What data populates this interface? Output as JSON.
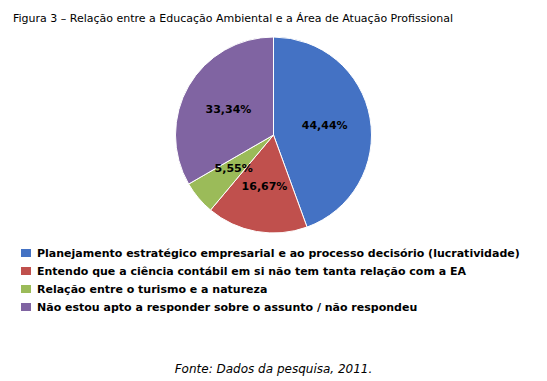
{
  "chart_data": {
    "type": "pie",
    "title": "Figura 3 – Relação entre a Educação Ambiental e a Área de Atuação Profissional",
    "categories": [
      "Planejamento estratégico empresarial e ao processo decisório (lucratividade)",
      "Entendo que a ciência contábil em si não tem tanta relação com a EA",
      "Relação entre o turismo e a natureza",
      "Não estou apto a responder sobre o assunto / não respondeu"
    ],
    "values": [
      44.44,
      16.67,
      5.55,
      33.34
    ],
    "value_labels": [
      "44,44%",
      "16,67%",
      "5,55%",
      "33,34%"
    ],
    "colors": [
      "#4472C4",
      "#C0504D",
      "#9BBB59",
      "#8064A2"
    ],
    "data_labels": true,
    "legend": "bottom",
    "annotations": [
      "Fonte: Dados da pesquisa, 2011."
    ]
  }
}
